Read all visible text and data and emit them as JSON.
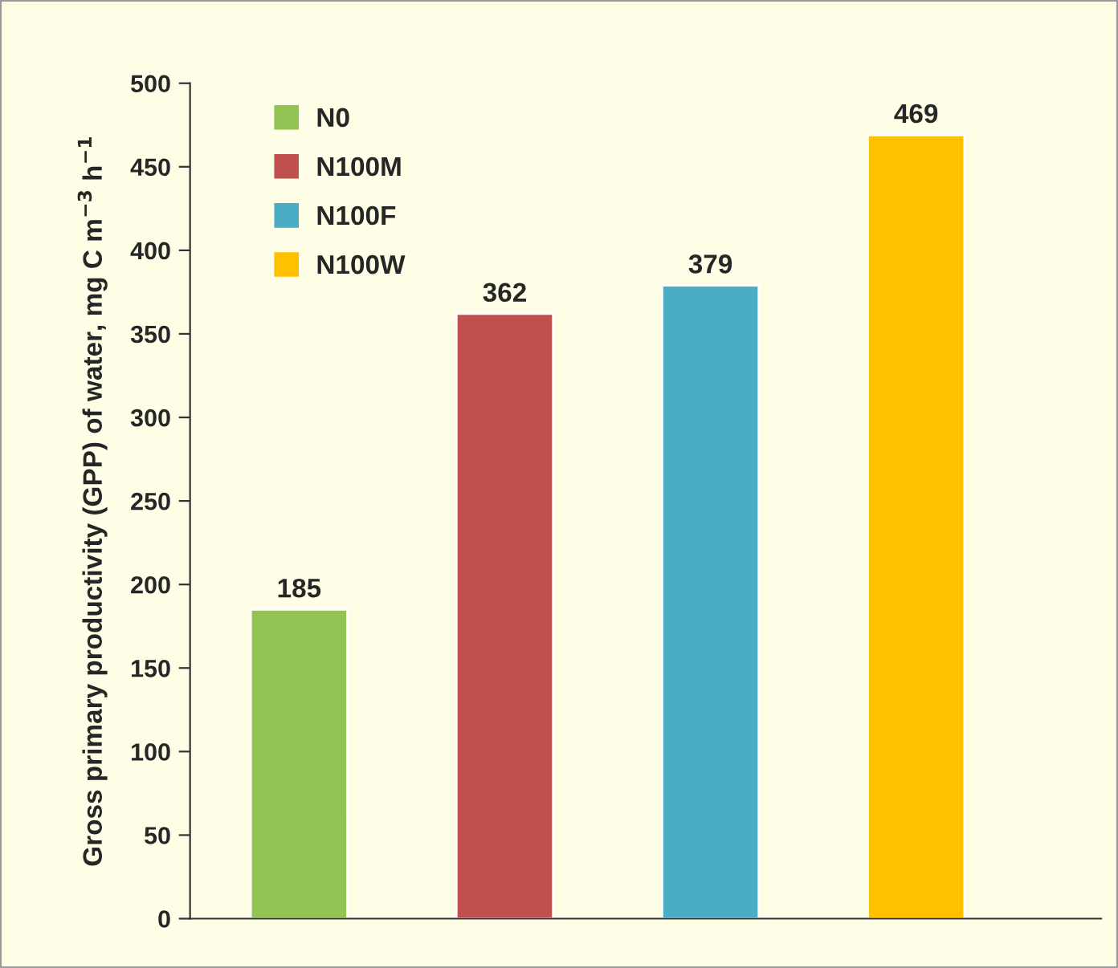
{
  "chart_data": {
    "type": "bar",
    "ylabel": "Gross primary productivity (GPP) of water, mg C m$^{−3}$ h$^{−1}$",
    "categories": [
      null,
      null,
      null,
      null
    ],
    "series": [
      {
        "name": "N0",
        "color": "#92c353",
        "values": [
          185,
          null,
          null,
          null
        ]
      },
      {
        "name": "N100M",
        "color": "#c0504d",
        "values": [
          null,
          362,
          null,
          null
        ]
      },
      {
        "name": "N100F",
        "color": "#4bacc6",
        "values": [
          null,
          null,
          379,
          null
        ]
      },
      {
        "name": "N100W",
        "color": "#ffc000",
        "values": [
          null,
          null,
          null,
          469
        ]
      }
    ],
    "ylim": [
      0,
      500
    ],
    "yticks": [
      0,
      50,
      100,
      150,
      200,
      250,
      300,
      350,
      400,
      450,
      500
    ],
    "data_labels": true,
    "legend": "top left",
    "grid": false
  }
}
